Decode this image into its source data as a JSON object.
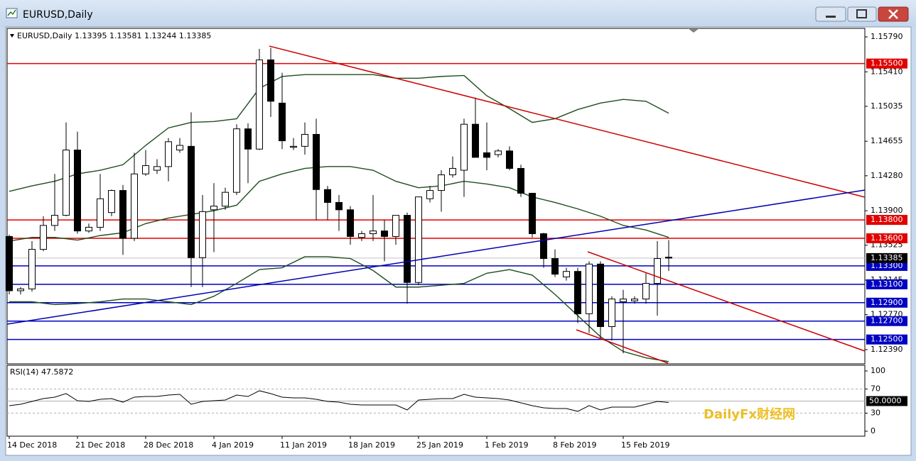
{
  "window": {
    "title": "EURUSD,Daily"
  },
  "chart_data": {
    "type": "candlestick",
    "title": "EURUSD,Daily  1.13395 1.13581 1.13244 1.13385",
    "candles": [
      [
        1.1362,
        1.1364,
        1.1299,
        1.1303
      ],
      [
        1.1303,
        1.1307,
        1.1299,
        1.1305
      ],
      [
        1.1305,
        1.1357,
        1.1302,
        1.1348
      ],
      [
        1.1348,
        1.1384,
        1.1346,
        1.1374
      ],
      [
        1.1374,
        1.143,
        1.1368,
        1.1385
      ],
      [
        1.1385,
        1.1486,
        1.1384,
        1.1456
      ],
      [
        1.1456,
        1.1476,
        1.1365,
        1.1368
      ],
      [
        1.1368,
        1.1376,
        1.1366,
        1.1372
      ],
      [
        1.1372,
        1.143,
        1.1368,
        1.1403
      ],
      [
        1.1388,
        1.1413,
        1.1384,
        1.1412
      ],
      [
        1.1412,
        1.1418,
        1.1342,
        1.136
      ],
      [
        1.136,
        1.1453,
        1.1357,
        1.143
      ],
      [
        1.143,
        1.1456,
        1.1428,
        1.1439
      ],
      [
        1.1434,
        1.1446,
        1.143,
        1.1438
      ],
      [
        1.1438,
        1.1469,
        1.1422,
        1.1465
      ],
      [
        1.1456,
        1.1469,
        1.1453,
        1.1461
      ],
      [
        1.146,
        1.1497,
        1.1307,
        1.1339
      ],
      [
        1.1339,
        1.1407,
        1.1307,
        1.1389
      ],
      [
        1.1391,
        1.142,
        1.1345,
        1.1395
      ],
      [
        1.1395,
        1.1415,
        1.1391,
        1.141
      ],
      [
        1.141,
        1.1484,
        1.1407,
        1.1479
      ],
      [
        1.1479,
        1.1485,
        1.142,
        1.1457
      ],
      [
        1.1457,
        1.1566,
        1.1456,
        1.1554
      ],
      [
        1.1554,
        1.1567,
        1.1492,
        1.1509
      ],
      [
        1.1507,
        1.154,
        1.1457,
        1.1466
      ],
      [
        1.1459,
        1.1469,
        1.1456,
        1.146
      ],
      [
        1.146,
        1.1486,
        1.1451,
        1.1473
      ],
      [
        1.1473,
        1.149,
        1.138,
        1.1413
      ],
      [
        1.1413,
        1.1417,
        1.138,
        1.1399
      ],
      [
        1.1399,
        1.1407,
        1.1368,
        1.1391
      ],
      [
        1.1391,
        1.1395,
        1.1353,
        1.1362
      ],
      [
        1.1361,
        1.1368,
        1.1357,
        1.1365
      ],
      [
        1.1365,
        1.1407,
        1.1357,
        1.1368
      ],
      [
        1.1368,
        1.138,
        1.1335,
        1.1362
      ],
      [
        1.1362,
        1.1385,
        1.1353,
        1.1385
      ],
      [
        1.1385,
        1.1388,
        1.1289,
        1.1312
      ],
      [
        1.1312,
        1.1405,
        1.1309,
        1.1405
      ],
      [
        1.1403,
        1.1417,
        1.1399,
        1.1412
      ],
      [
        1.1412,
        1.1434,
        1.1389,
        1.1429
      ],
      [
        1.1429,
        1.1449,
        1.1426,
        1.1436
      ],
      [
        1.1434,
        1.149,
        1.1405,
        1.1484
      ],
      [
        1.1484,
        1.1513,
        1.1448,
        1.1448
      ],
      [
        1.1453,
        1.1486,
        1.1434,
        1.1448
      ],
      [
        1.1451,
        1.1457,
        1.1448,
        1.1455
      ],
      [
        1.1455,
        1.146,
        1.1434,
        1.1436
      ],
      [
        1.1436,
        1.144,
        1.1405,
        1.1409
      ],
      [
        1.1409,
        1.1409,
        1.1361,
        1.1365
      ],
      [
        1.1365,
        1.1366,
        1.1328,
        1.1338
      ],
      [
        1.1338,
        1.1348,
        1.1318,
        1.1321
      ],
      [
        1.1318,
        1.1328,
        1.1314,
        1.1324
      ],
      [
        1.1324,
        1.1328,
        1.1268,
        1.1278
      ],
      [
        1.1278,
        1.1335,
        1.1257,
        1.1332
      ],
      [
        1.1332,
        1.1335,
        1.1251,
        1.1264
      ],
      [
        1.1264,
        1.1297,
        1.1249,
        1.1294
      ],
      [
        1.1291,
        1.1304,
        1.1235,
        1.1294
      ],
      [
        1.1292,
        1.1297,
        1.1289,
        1.1294
      ],
      [
        1.1294,
        1.1322,
        1.1289,
        1.1311
      ],
      [
        1.1311,
        1.1357,
        1.1276,
        1.1338
      ],
      [
        1.13395,
        1.13581,
        1.13244,
        1.13385
      ]
    ],
    "bull_color": "#ffffff",
    "bear_color": "#000000",
    "x_labels": [
      {
        "value": 0,
        "label": "14 Dec 2018"
      },
      {
        "value": 6,
        "label": "21 Dec 2018"
      },
      {
        "value": 12,
        "label": "28 Dec 2018"
      },
      {
        "value": 18,
        "label": "4 Jan 2019"
      },
      {
        "value": 24,
        "label": "11 Jan 2019"
      },
      {
        "value": 30,
        "label": "18 Jan 2019"
      },
      {
        "value": 36,
        "label": "25 Jan 2019"
      },
      {
        "value": 42,
        "label": "1 Feb 2019"
      },
      {
        "value": 48,
        "label": "8 Feb 2019"
      },
      {
        "value": 54,
        "label": "15 Feb 2019"
      }
    ],
    "ylim": [
      1.12243,
      1.15867
    ],
    "yticks": [
      {
        "value": 1.1579,
        "label": "1.15790"
      },
      {
        "value": 1.1541,
        "label": "1.15410"
      },
      {
        "value": 1.15035,
        "label": "1.15035"
      },
      {
        "value": 1.14655,
        "label": "1.14655"
      },
      {
        "value": 1.1428,
        "label": "1.14280"
      },
      {
        "value": 1.139,
        "label": "1.13900"
      },
      {
        "value": 1.13525,
        "label": "1.13525"
      },
      {
        "value": 1.13145,
        "label": "1.13145"
      },
      {
        "value": 1.1277,
        "label": "1.12770"
      },
      {
        "value": 1.1239,
        "label": "1.12390"
      }
    ],
    "levels": [
      {
        "value": 1.155,
        "label": "1.15500",
        "color": "#e00000"
      },
      {
        "value": 1.138,
        "label": "1.13800",
        "color": "#e00000"
      },
      {
        "value": 1.136,
        "label": "1.13600",
        "color": "#e00000"
      },
      {
        "value": 1.133,
        "label": "1.13300",
        "color": "#0000c0"
      },
      {
        "value": 1.131,
        "label": "1.13100",
        "color": "#0000c0"
      },
      {
        "value": 1.129,
        "label": "1.12900",
        "color": "#0000c0"
      },
      {
        "value": 1.127,
        "label": "1.12700",
        "color": "#0000c0"
      },
      {
        "value": 1.125,
        "label": "1.12500",
        "color": "#0000c0"
      }
    ],
    "current_price": {
      "value": 1.13385,
      "label": "1.13385"
    },
    "bands": {
      "color": "#1e4d1e",
      "x": [
        0,
        2,
        4,
        6,
        8,
        10,
        12,
        14,
        16,
        18,
        20,
        22,
        24,
        26,
        28,
        30,
        32,
        34,
        36,
        38,
        40,
        42,
        44,
        46,
        48,
        50,
        52,
        54,
        56,
        58
      ],
      "upper": [
        1.1411,
        1.1417,
        1.1422,
        1.143,
        1.1434,
        1.144,
        1.1461,
        1.148,
        1.1486,
        1.1487,
        1.149,
        1.1523,
        1.1536,
        1.1538,
        1.1538,
        1.1538,
        1.1538,
        1.1534,
        1.1534,
        1.1536,
        1.1537,
        1.1515,
        1.1501,
        1.1486,
        1.149,
        1.15,
        1.1507,
        1.1511,
        1.1509,
        1.1496
      ],
      "middle": [
        1.1357,
        1.1361,
        1.1361,
        1.1358,
        1.1363,
        1.1366,
        1.1376,
        1.1382,
        1.1386,
        1.139,
        1.1396,
        1.1422,
        1.143,
        1.1436,
        1.1438,
        1.1438,
        1.1434,
        1.1422,
        1.1415,
        1.1417,
        1.1422,
        1.1419,
        1.1415,
        1.1405,
        1.1399,
        1.1392,
        1.1384,
        1.1374,
        1.1369,
        1.1361
      ],
      "lower": [
        1.1291,
        1.1291,
        1.1288,
        1.1289,
        1.1291,
        1.1294,
        1.1294,
        1.1291,
        1.1288,
        1.1297,
        1.1311,
        1.1326,
        1.1328,
        1.134,
        1.134,
        1.1338,
        1.1325,
        1.1307,
        1.1307,
        1.1309,
        1.1311,
        1.1322,
        1.1326,
        1.132,
        1.1299,
        1.1276,
        1.1253,
        1.1237,
        1.123,
        1.1226
      ]
    },
    "rsi": {
      "title": "RSI(14) 47.5872",
      "color": "#000000",
      "values": [
        42.4,
        44.7,
        49.4,
        54.1,
        56.5,
        62.4,
        50.6,
        49.4,
        52.9,
        54.1,
        48.2,
        56.5,
        57.6,
        57.6,
        60.0,
        61.2,
        44.7,
        49.4,
        50.6,
        51.8,
        60.0,
        57.6,
        67.1,
        62.4,
        56.5,
        55.3,
        55.3,
        52.9,
        49.4,
        48.2,
        44.7,
        43.5,
        43.5,
        43.5,
        43.5,
        35.3,
        51.8,
        52.9,
        54.1,
        54.1,
        61.2,
        56.5,
        55.3,
        54.1,
        51.8,
        47.1,
        42.4,
        38.8,
        37.6,
        37.6,
        32.9,
        42.4,
        35.3,
        40.0,
        40.0,
        40.0,
        44.7,
        49.4,
        47.5872
      ],
      "ylim": [
        0,
        100
      ],
      "yticks": [
        100,
        70,
        30,
        0
      ],
      "level": {
        "value": 50,
        "label": "50.0000"
      }
    },
    "watermark": "DailyFx财经网"
  }
}
